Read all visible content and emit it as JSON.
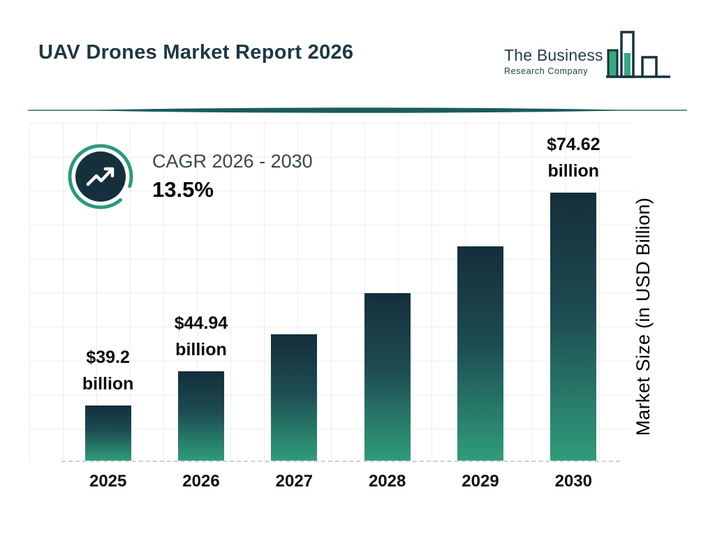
{
  "page": {
    "title": "UAV Drones Market Report 2026"
  },
  "logo": {
    "line1": "The Business",
    "line2": "Research Company"
  },
  "cagr": {
    "label": "CAGR 2026 - 2030",
    "value": "13.5%"
  },
  "colors": {
    "title": "#1d3743",
    "accent_teal": "#2a9a7a",
    "bar_top": "#142e3b",
    "bar_bottom": "#2f9c79",
    "divider": "#1b5b5c"
  },
  "chart_data": {
    "type": "bar",
    "title": "UAV Drones Market Report 2026",
    "categories": [
      "2025",
      "2026",
      "2027",
      "2028",
      "2029",
      "2030"
    ],
    "values": [
      39.2,
      44.94,
      51.0,
      57.9,
      65.7,
      74.62
    ],
    "bar_labels": [
      {
        "line1": "$39.2",
        "line2": "billion"
      },
      {
        "line1": "$44.94",
        "line2": "billion"
      },
      null,
      null,
      null,
      {
        "line1": "$74.62",
        "line2": "billion"
      }
    ],
    "xlabel": "",
    "ylabel": "Market Size (in USD Billion)",
    "ylim": [
      30,
      80
    ],
    "grid": true,
    "legend": false,
    "annotation": "CAGR 2026 - 2030: 13.5%"
  }
}
